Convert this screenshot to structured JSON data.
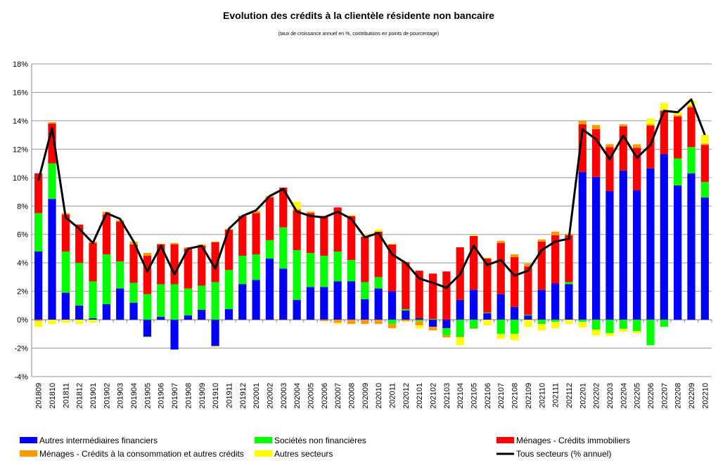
{
  "chart_data": {
    "type": "bar",
    "stacked": true,
    "title": "Evolution des crédits à la clientèle résidente non bancaire",
    "subtitle": "(taux de croissance annuel en %, contributions en points de pourcentage)",
    "xlabel": "",
    "ylabel": "",
    "ylim": [
      -4,
      18
    ],
    "yticks": [
      -4,
      -2,
      0,
      2,
      4,
      6,
      8,
      10,
      12,
      14,
      16,
      18
    ],
    "ytick_suffix": "%",
    "grid": true,
    "legend_position": "bottom",
    "categories": [
      "201809",
      "201810",
      "201811",
      "201812",
      "201901",
      "201902",
      "201903",
      "201904",
      "201905",
      "201906",
      "201907",
      "201908",
      "201909",
      "201910",
      "201911",
      "201912",
      "202001",
      "202002",
      "202003",
      "202004",
      "202005",
      "202006",
      "202007",
      "202008",
      "202009",
      "202010",
      "202011",
      "202012",
      "202101",
      "202102",
      "202103",
      "202104",
      "202105",
      "202106",
      "202107",
      "202108",
      "202109",
      "202110",
      "202111",
      "202112",
      "202201",
      "202202",
      "202203",
      "202204",
      "202205",
      "202206",
      "202207",
      "202208",
      "202209",
      "202210"
    ],
    "series": [
      {
        "name": "Autres intermédiaires financiers",
        "color": "#0000ff",
        "values": [
          4.8,
          8.5,
          1.9,
          1.0,
          0.1,
          1.1,
          2.2,
          1.2,
          -1.2,
          0.2,
          -2.1,
          0.3,
          0.7,
          -1.85,
          0.75,
          2.5,
          2.8,
          4.3,
          3.6,
          1.4,
          2.3,
          2.3,
          2.7,
          2.7,
          1.45,
          2.2,
          2.0,
          0.65,
          0.1,
          -0.5,
          -0.6,
          1.4,
          2.1,
          0.45,
          1.8,
          0.9,
          0.3,
          2.1,
          2.55,
          2.5,
          10.4,
          10.05,
          9.05,
          10.5,
          9.1,
          10.65,
          11.65,
          9.45,
          10.3,
          8.6
        ]
      },
      {
        "name": "Sociétés non financières",
        "color": "#00ff00",
        "values": [
          2.7,
          2.5,
          2.9,
          3.0,
          2.6,
          3.5,
          1.9,
          1.4,
          1.8,
          2.3,
          2.5,
          1.9,
          1.7,
          2.65,
          2.75,
          2.0,
          1.8,
          1.3,
          2.9,
          3.5,
          2.4,
          2.2,
          2.1,
          1.5,
          1.2,
          0.8,
          -0.3,
          0.1,
          -0.1,
          0.05,
          -0.5,
          -1.2,
          -0.6,
          0.05,
          -1.0,
          -1.0,
          0.05,
          -0.3,
          -0.15,
          0.15,
          -0.15,
          -0.7,
          -0.95,
          -0.65,
          -0.8,
          -1.8,
          -0.5,
          1.9,
          1.85,
          1.1
        ]
      },
      {
        "name": "Ménages - Crédits immobiliers",
        "color": "#ff0000",
        "values": [
          2.8,
          2.8,
          2.6,
          2.7,
          2.7,
          2.8,
          2.8,
          2.7,
          2.7,
          2.8,
          2.8,
          2.8,
          2.8,
          2.8,
          2.85,
          2.8,
          2.9,
          3.0,
          2.8,
          2.8,
          2.8,
          2.8,
          3.1,
          3.1,
          3.2,
          3.2,
          3.3,
          3.3,
          3.35,
          3.2,
          3.4,
          3.7,
          3.8,
          3.8,
          3.6,
          3.5,
          3.4,
          3.4,
          3.4,
          3.3,
          3.35,
          3.35,
          3.1,
          3.1,
          3.0,
          3.0,
          3.05,
          2.95,
          2.8,
          2.6
        ]
      },
      {
        "name": "Ménages - Crédits à la consommation et autres crédits",
        "color": "#ff9900",
        "values": [
          -0.1,
          0.1,
          0.1,
          0.0,
          0.1,
          0.2,
          0.1,
          0.2,
          0.2,
          0.05,
          0.1,
          0.1,
          0.1,
          0.05,
          0.0,
          0.0,
          0.15,
          0.1,
          -0.05,
          0.1,
          0.1,
          -0.1,
          -0.2,
          -0.3,
          -0.3,
          -0.3,
          -0.3,
          -0.1,
          -0.3,
          -0.25,
          -0.15,
          -0.05,
          -0.05,
          0.05,
          0.15,
          0.2,
          0.2,
          0.15,
          0.25,
          0.1,
          0.25,
          0.3,
          0.2,
          0.15,
          0.25,
          0.1,
          0.05,
          0.1,
          0.1,
          0.1
        ]
      },
      {
        "name": "Autres secteurs",
        "color": "#ffff00",
        "values": [
          -0.4,
          -0.3,
          -0.2,
          -0.3,
          -0.2,
          0.0,
          0.0,
          0.0,
          -0.05,
          0.0,
          0.0,
          0.0,
          0.0,
          -0.05,
          0.05,
          0.0,
          0.0,
          0.0,
          0.0,
          0.5,
          0.0,
          0.0,
          -0.1,
          0.05,
          0.15,
          0.15,
          0.05,
          -0.05,
          -0.2,
          0.0,
          0.0,
          -0.55,
          0.05,
          -0.4,
          -0.35,
          -0.45,
          -0.5,
          -0.45,
          -0.45,
          -0.3,
          -0.4,
          -0.4,
          -0.2,
          -0.2,
          -0.15,
          0.4,
          0.5,
          0.2,
          0.35,
          0.6
        ]
      }
    ],
    "line": {
      "name": "Tous secteurs (% annuel)",
      "color": "#000000",
      "values": [
        9.8,
        13.5,
        7.2,
        6.4,
        5.4,
        7.5,
        7.1,
        5.5,
        3.4,
        5.2,
        3.2,
        5.0,
        5.2,
        3.6,
        6.4,
        7.3,
        7.7,
        8.7,
        9.2,
        7.6,
        7.3,
        7.2,
        7.6,
        7.1,
        5.8,
        6.1,
        4.6,
        4.0,
        2.9,
        2.6,
        2.25,
        3.2,
        5.2,
        3.85,
        4.2,
        3.1,
        3.45,
        4.9,
        5.5,
        5.7,
        13.4,
        12.7,
        11.3,
        12.95,
        11.4,
        12.3,
        14.7,
        14.6,
        15.5,
        13.0
      ]
    },
    "legend": [
      "Autres intermédiaires financiers",
      "Sociétés non financières",
      "Ménages - Crédits immobiliers",
      "Ménages - Crédits à la consommation et autres crédits",
      "Autres secteurs",
      "Tous secteurs (% annuel)"
    ]
  }
}
